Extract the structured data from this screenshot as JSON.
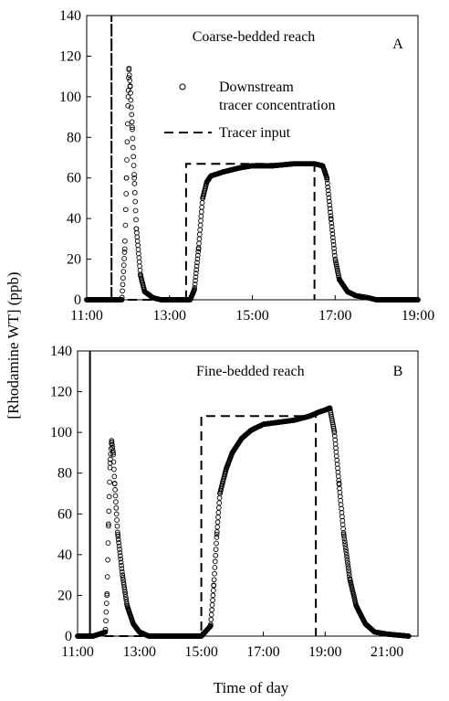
{
  "figure": {
    "ylabel": "[Rhodamine WT] (ppb)",
    "xlabel": "Time of day",
    "legend": {
      "downstream": "Downstream\ntracer concentration",
      "input": "Tracer input"
    }
  },
  "chart_data": [
    {
      "type": "scatter",
      "title": "Coarse-bedded reach",
      "panel_label": "A",
      "xlabel": "",
      "ylabel": "[Rhodamine WT] (ppb)",
      "x_unit": "hours (time of day)",
      "xlim": [
        11,
        19
      ],
      "ylim": [
        0,
        140
      ],
      "x_ticks": [
        "11:00",
        "13:00",
        "15:00",
        "17:00",
        "19:00"
      ],
      "x_tick_values": [
        11,
        13,
        15,
        17,
        19
      ],
      "y_ticks": [
        0,
        20,
        40,
        60,
        80,
        100,
        120,
        140
      ],
      "grid": false,
      "legend_position": "top-center",
      "series": [
        {
          "name": "Downstream tracer concentration",
          "style": "open-circle",
          "x": [
            11.0,
            11.5,
            11.85,
            11.92,
            11.96,
            12.0,
            12.02,
            12.05,
            12.1,
            12.15,
            12.2,
            12.3,
            12.4,
            12.6,
            12.8,
            13.0,
            13.5,
            13.6,
            13.7,
            13.8,
            13.9,
            14.0,
            14.3,
            14.7,
            15.0,
            15.5,
            16.0,
            16.5,
            16.7,
            16.8,
            16.9,
            17.0,
            17.1,
            17.3,
            17.5,
            17.8,
            18.0,
            18.5,
            19.0
          ],
          "y": [
            0,
            0,
            0,
            25,
            60,
            100,
            114,
            105,
            85,
            60,
            35,
            12,
            4,
            1,
            0,
            0,
            0,
            5,
            25,
            50,
            58,
            61,
            63,
            65,
            66,
            66,
            67,
            67,
            66,
            60,
            40,
            20,
            10,
            4,
            2,
            1,
            0,
            0,
            0
          ]
        },
        {
          "name": "Tracer input",
          "style": "dashed-line",
          "x": [
            11.6,
            11.6,
            11.6,
            13.4,
            13.4,
            16.5,
            16.5
          ],
          "y": [
            0,
            140,
            0,
            0,
            67,
            67,
            0
          ]
        }
      ]
    },
    {
      "type": "scatter",
      "title": "Fine-bedded reach",
      "panel_label": "B",
      "xlabel": "Time of day",
      "ylabel": "[Rhodamine WT] (ppb)",
      "x_unit": "hours (time of day)",
      "xlim": [
        11,
        22
      ],
      "ylim": [
        0,
        140
      ],
      "x_ticks": [
        "11:00",
        "13:00",
        "15:00",
        "17:00",
        "19:00",
        "21:00"
      ],
      "x_tick_values": [
        11,
        13,
        15,
        17,
        19,
        21
      ],
      "y_ticks": [
        0,
        20,
        40,
        60,
        80,
        100,
        120,
        140
      ],
      "grid": false,
      "legend_position": "none",
      "series": [
        {
          "name": "Downstream tracer concentration",
          "style": "open-circle",
          "x": [
            11.0,
            11.5,
            11.9,
            11.95,
            12.0,
            12.05,
            12.1,
            12.15,
            12.2,
            12.3,
            12.45,
            12.6,
            12.8,
            13.0,
            13.3,
            13.7,
            14.0,
            14.5,
            15.0,
            15.3,
            15.4,
            15.5,
            15.6,
            15.8,
            16.0,
            16.3,
            16.6,
            17.0,
            17.5,
            18.0,
            18.5,
            18.8,
            19.0,
            19.15,
            19.3,
            19.45,
            19.6,
            19.8,
            20.0,
            20.3,
            20.6,
            21.0,
            21.7
          ],
          "y": [
            0,
            0,
            2,
            20,
            55,
            85,
            96,
            90,
            75,
            50,
            30,
            15,
            6,
            2,
            0,
            0,
            0,
            0,
            0,
            5,
            25,
            50,
            70,
            82,
            90,
            97,
            101,
            104,
            105,
            106,
            108,
            110,
            111,
            112,
            100,
            75,
            50,
            28,
            15,
            6,
            2,
            1,
            0
          ]
        },
        {
          "name": "Tracer input",
          "style": "dashed-line",
          "x": [
            11.4,
            11.4,
            11.4,
            15.0,
            15.0,
            18.7,
            18.7
          ],
          "y": [
            0,
            140,
            0,
            0,
            108,
            108,
            0
          ]
        }
      ]
    }
  ]
}
